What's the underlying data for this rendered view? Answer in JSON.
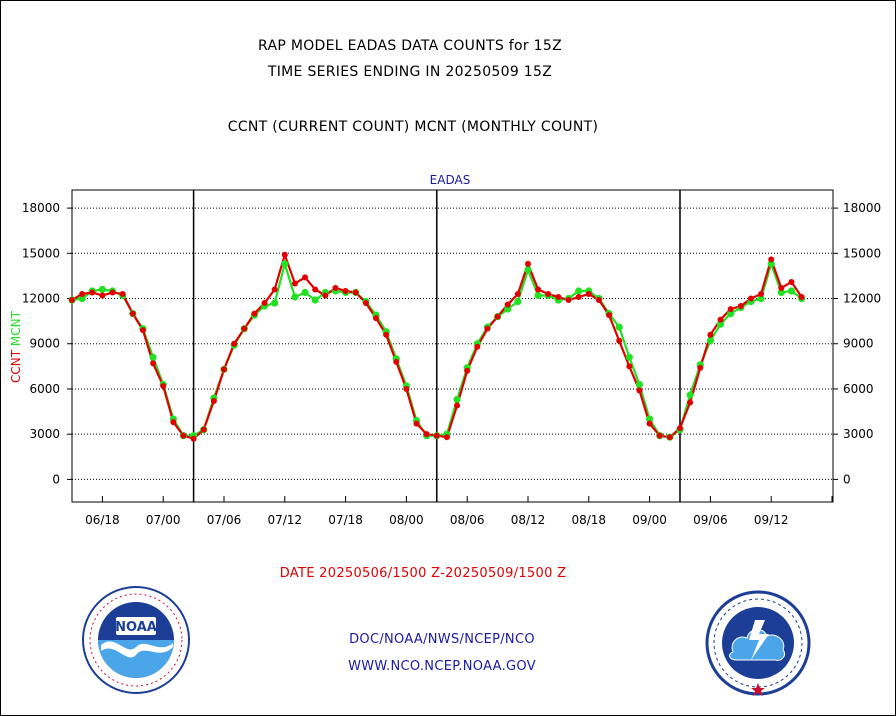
{
  "header": {
    "title_line1": "RAP MODEL EADAS DATA COUNTS for 15Z",
    "title_line2": "TIME SERIES ENDING IN 20250509 15Z",
    "subtitle": "CCNT (CURRENT COUNT) MCNT (MONTHLY COUNT)"
  },
  "footer": {
    "date_range": "DATE 20250506/1500 Z-20250509/1500 Z",
    "org": "DOC/NOAA/NWS/NCEP/NCO",
    "url": "WWW.NCO.NCEP.NOAA.GOV"
  },
  "logos": {
    "left": "noaa-logo",
    "right": "national-weather-service-logo"
  },
  "colors": {
    "ccnt": "#e00000",
    "mcnt": "#22e022",
    "legend_text": "#1a1aa6"
  },
  "chart_data": {
    "type": "line",
    "title": "EADAS",
    "ylabel_parts": [
      {
        "text": "CCNT",
        "color": "#e00000"
      },
      {
        "text": "MCNT",
        "color": "#22e022"
      }
    ],
    "ylim": [
      -1500,
      19200
    ],
    "yticks": [
      0,
      3000,
      6000,
      9000,
      12000,
      15000,
      18000
    ],
    "xlim": [
      15.0,
      90.1
    ],
    "x_tick_positions": [
      18,
      24,
      30,
      36,
      42,
      48,
      54,
      60,
      66,
      72,
      78,
      84,
      90
    ],
    "x_tick_labels": [
      "06/18",
      "07/00",
      "07/06",
      "07/12",
      "07/18",
      "08/00",
      "08/06",
      "08/12",
      "08/18",
      "09/00",
      "09/06",
      "09/12"
    ],
    "x_label_positions": [
      18,
      24,
      30,
      36,
      42,
      48,
      54,
      60,
      66,
      72,
      78,
      84
    ],
    "day_separators": [
      27,
      51,
      75
    ],
    "grid": true,
    "series": [
      {
        "name": "CCNT",
        "color": "#e00000",
        "x": [
          15,
          16,
          17,
          18,
          19,
          20,
          21,
          22,
          23,
          24,
          25,
          26,
          27,
          28,
          29,
          30,
          31,
          32,
          33,
          34,
          35,
          36,
          37,
          38,
          39,
          40,
          41,
          42,
          43,
          44,
          45,
          46,
          47,
          48,
          49,
          50,
          51,
          52,
          53,
          54,
          55,
          56,
          57,
          58,
          59,
          60,
          61,
          62,
          63,
          64,
          65,
          66,
          67,
          68,
          69,
          70,
          71,
          72,
          73,
          74,
          75,
          76,
          77,
          78,
          79,
          80,
          81,
          82,
          83,
          84,
          85,
          86,
          87
        ],
        "y": [
          11900,
          12300,
          12400,
          12200,
          12400,
          12300,
          11000,
          9900,
          7700,
          6200,
          3800,
          2900,
          2700,
          3300,
          5200,
          7300,
          9000,
          10000,
          11000,
          11700,
          12600,
          14900,
          13000,
          13400,
          12600,
          12200,
          12700,
          12500,
          12400,
          11700,
          10700,
          9600,
          7800,
          6000,
          3700,
          3000,
          2900,
          2800,
          4900,
          7200,
          8800,
          10000,
          10800,
          11600,
          12300,
          14300,
          12600,
          12300,
          12100,
          11900,
          12100,
          12300,
          11900,
          10900,
          9200,
          7500,
          5900,
          3700,
          2900,
          2800,
          3400,
          5100,
          7400,
          9600,
          10600,
          11300,
          11500,
          12000,
          12300,
          14600,
          12700,
          13100,
          12100
        ]
      },
      {
        "name": "MCNT",
        "color": "#22e022",
        "x": [
          15,
          16,
          17,
          18,
          19,
          20,
          21,
          22,
          23,
          24,
          25,
          26,
          27,
          28,
          29,
          30,
          31,
          32,
          33,
          34,
          35,
          36,
          37,
          38,
          39,
          40,
          41,
          42,
          43,
          44,
          45,
          46,
          47,
          48,
          49,
          50,
          51,
          52,
          53,
          54,
          55,
          56,
          57,
          58,
          59,
          60,
          61,
          62,
          63,
          64,
          65,
          66,
          67,
          68,
          69,
          70,
          71,
          72,
          73,
          74,
          75,
          76,
          77,
          78,
          79,
          80,
          81,
          82,
          83,
          84,
          85,
          86,
          87
        ],
        "y": [
          11900,
          12000,
          12500,
          12600,
          12500,
          12200,
          11000,
          10000,
          8100,
          6300,
          4000,
          2900,
          2900,
          3300,
          5400,
          7300,
          8900,
          10000,
          10900,
          11500,
          11700,
          14300,
          12100,
          12400,
          11900,
          12400,
          12500,
          12400,
          12400,
          11800,
          10900,
          9800,
          8000,
          6200,
          3900,
          2900,
          2900,
          3000,
          5300,
          7400,
          9000,
          10100,
          10800,
          11300,
          11800,
          13900,
          12200,
          12200,
          11900,
          12000,
          12500,
          12500,
          12000,
          11000,
          10100,
          8100,
          6300,
          4000,
          2900,
          2800,
          3300,
          5600,
          7600,
          9200,
          10300,
          11000,
          11400,
          11800,
          12000,
          14300,
          12400,
          12500,
          12000
        ]
      }
    ]
  }
}
